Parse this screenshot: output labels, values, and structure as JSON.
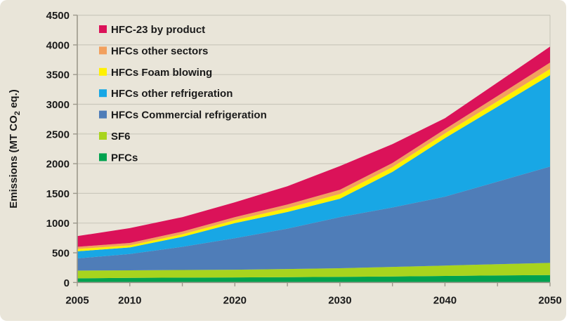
{
  "window": {
    "background_color": "#E9E5D9",
    "page_color": "#FFFFFF"
  },
  "chart_data": {
    "type": "area",
    "stacked": true,
    "title": "",
    "x_years": [
      2005,
      2010,
      2015,
      2020,
      2025,
      2030,
      2035,
      2040,
      2045,
      2050
    ],
    "x_axis": {
      "range": [
        2005,
        2050
      ],
      "labeled_ticks": [
        "2005",
        "2010",
        "2020",
        "2030",
        "2040",
        "2050"
      ],
      "labeled_tick_years": [
        2005,
        2010,
        2020,
        2030,
        2040,
        2050
      ],
      "minor_tick_step_years": 5
    },
    "y_axis": {
      "range": [
        0,
        4500
      ],
      "tick_step": 500,
      "tick_labels": [
        "0",
        "500",
        "1000",
        "1500",
        "2000",
        "2500",
        "3000",
        "3500",
        "4000",
        "4500"
      ],
      "title_prefix": "Emissions (MT CO",
      "title_sub": "2",
      "title_suffix": " eq.)"
    },
    "grid": true,
    "legend_position": "upper-left-inside",
    "series_bottom_to_top": [
      {
        "id": "pfcs",
        "name": "PFCs",
        "color": "#00A24F",
        "values": [
          70,
          78,
          82,
          85,
          90,
          95,
          102,
          110,
          118,
          125
        ]
      },
      {
        "id": "sf6",
        "name": "SF6",
        "color": "#A8D41E",
        "values": [
          130,
          127,
          128,
          130,
          137,
          145,
          160,
          175,
          189,
          205
        ]
      },
      {
        "id": "hfcs-commercial-refrigeration",
        "name": "HFCs Commercial refrigeration",
        "color": "#4F7DB8",
        "values": [
          205,
          275,
          390,
          530,
          680,
          860,
          1000,
          1160,
          1390,
          1620
        ]
      },
      {
        "id": "hfcs-other-refrigeration",
        "name": "HFCs other refrigeration",
        "color": "#18A7E5",
        "values": [
          120,
          110,
          170,
          255,
          280,
          310,
          600,
          985,
          1262,
          1540
        ]
      },
      {
        "id": "hfcs-foam-blowing",
        "name": "HFCs Foam blowing",
        "color": "#FFF100",
        "values": [
          40,
          35,
          42,
          50,
          65,
          80,
          80,
          80,
          92,
          105
        ]
      },
      {
        "id": "hfcs-other-sectors",
        "name": "HFCs other sectors",
        "color": "#F2A05E",
        "values": [
          35,
          40,
          45,
          50,
          60,
          70,
          70,
          70,
          88,
          107
        ]
      },
      {
        "id": "hfc-23-by-product",
        "name": "HFC-23 by product",
        "color": "#DB1259",
        "values": [
          180,
          250,
          243,
          250,
          308,
          400,
          318,
          185,
          228,
          268
        ]
      }
    ],
    "totals_by_year": [
      780,
      915,
      1100,
      1350,
      1620,
      1960,
      2330,
      2765,
      3367,
      3970
    ],
    "colors": {
      "background": "#E9E5D9",
      "grid": "#CBC8BC",
      "axis": "#9C988B",
      "text": "#1A1A1A"
    }
  }
}
